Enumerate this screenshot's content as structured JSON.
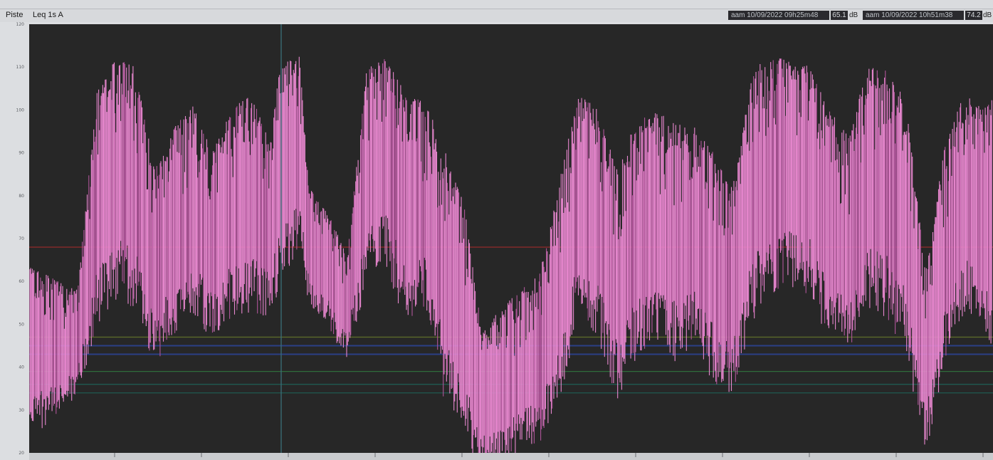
{
  "header": {
    "title_left": "Piste",
    "title_mid": "Leq 1s  A",
    "cursor1": {
      "label": "aam  10/09/2022 09h25m48",
      "value": "65.1",
      "unit": "dB"
    },
    "cursor2": {
      "label": "aam  10/09/2022 10h51m38",
      "value": "74.2",
      "unit": "dB"
    }
  },
  "colors": {
    "plot_bg": "#272727",
    "trace": "#e887cf",
    "trace_dark": "#b0559a",
    "threshold_red": "#8a2a2a",
    "band_olive": "#5b6a2a",
    "band_blue": "#2b3f86",
    "band_green": "#2f6d3a",
    "band_teal": "#1f5a52",
    "cursor_line": "#3a6f7a"
  },
  "chart_data": {
    "type": "line",
    "title": "",
    "xlabel": "",
    "ylabel": "",
    "ylim": [
      20,
      120
    ],
    "yticks": [
      20,
      30,
      40,
      50,
      60,
      70,
      80,
      90,
      100,
      110,
      120
    ],
    "grid": false,
    "legend": "none",
    "reference_lines": [
      {
        "y": 68,
        "color": "threshold_red"
      },
      {
        "y": 47,
        "color": "band_olive"
      },
      {
        "y": 45,
        "color": "band_blue"
      },
      {
        "y": 43,
        "color": "band_blue"
      },
      {
        "y": 39,
        "color": "band_green"
      },
      {
        "y": 36,
        "color": "band_teal"
      },
      {
        "y": 34,
        "color": "band_teal"
      }
    ],
    "series": [
      {
        "values_envelope": [
          {
            "x": 0,
            "low": 34,
            "high": 64
          },
          {
            "x": 3,
            "low": 36,
            "high": 60
          },
          {
            "x": 5,
            "low": 40,
            "high": 58
          },
          {
            "x": 7,
            "low": 62,
            "high": 104
          },
          {
            "x": 9,
            "low": 70,
            "high": 112
          },
          {
            "x": 11,
            "low": 68,
            "high": 110
          },
          {
            "x": 13,
            "low": 52,
            "high": 86
          },
          {
            "x": 15,
            "low": 60,
            "high": 96
          },
          {
            "x": 17,
            "low": 64,
            "high": 101
          },
          {
            "x": 19,
            "low": 58,
            "high": 90
          },
          {
            "x": 21,
            "low": 64,
            "high": 100
          },
          {
            "x": 23,
            "low": 66,
            "high": 104
          },
          {
            "x": 25,
            "low": 62,
            "high": 92
          },
          {
            "x": 26,
            "low": 72,
            "high": 110
          },
          {
            "x": 28,
            "low": 80,
            "high": 114
          },
          {
            "x": 29,
            "low": 62,
            "high": 82
          },
          {
            "x": 31,
            "low": 56,
            "high": 76
          },
          {
            "x": 33,
            "low": 48,
            "high": 66
          },
          {
            "x": 35,
            "low": 72,
            "high": 110
          },
          {
            "x": 37,
            "low": 76,
            "high": 112
          },
          {
            "x": 39,
            "low": 64,
            "high": 104
          },
          {
            "x": 41,
            "low": 66,
            "high": 102
          },
          {
            "x": 43,
            "low": 48,
            "high": 92
          },
          {
            "x": 45,
            "low": 38,
            "high": 80
          },
          {
            "x": 47,
            "low": 24,
            "high": 48
          },
          {
            "x": 49,
            "low": 26,
            "high": 54
          },
          {
            "x": 51,
            "low": 30,
            "high": 58
          },
          {
            "x": 53,
            "low": 32,
            "high": 62
          },
          {
            "x": 55,
            "low": 44,
            "high": 84
          },
          {
            "x": 57,
            "low": 66,
            "high": 104
          },
          {
            "x": 59,
            "low": 60,
            "high": 100
          },
          {
            "x": 61,
            "low": 46,
            "high": 86
          },
          {
            "x": 63,
            "low": 56,
            "high": 98
          },
          {
            "x": 65,
            "low": 58,
            "high": 100
          },
          {
            "x": 67,
            "low": 56,
            "high": 98
          },
          {
            "x": 69,
            "low": 58,
            "high": 96
          },
          {
            "x": 71,
            "low": 50,
            "high": 90
          },
          {
            "x": 73,
            "low": 46,
            "high": 82
          },
          {
            "x": 75,
            "low": 66,
            "high": 110
          },
          {
            "x": 77,
            "low": 70,
            "high": 112
          },
          {
            "x": 79,
            "low": 72,
            "high": 112
          },
          {
            "x": 81,
            "low": 70,
            "high": 110
          },
          {
            "x": 83,
            "low": 60,
            "high": 100
          },
          {
            "x": 85,
            "low": 56,
            "high": 94
          },
          {
            "x": 87,
            "low": 68,
            "high": 110
          },
          {
            "x": 89,
            "low": 66,
            "high": 110
          },
          {
            "x": 91,
            "low": 58,
            "high": 102
          },
          {
            "x": 93,
            "low": 30,
            "high": 62
          },
          {
            "x": 95,
            "low": 54,
            "high": 92
          },
          {
            "x": 97,
            "low": 66,
            "high": 104
          },
          {
            "x": 99,
            "low": 62,
            "high": 100
          },
          {
            "x": 100,
            "low": 60,
            "high": 104
          }
        ]
      }
    ]
  }
}
